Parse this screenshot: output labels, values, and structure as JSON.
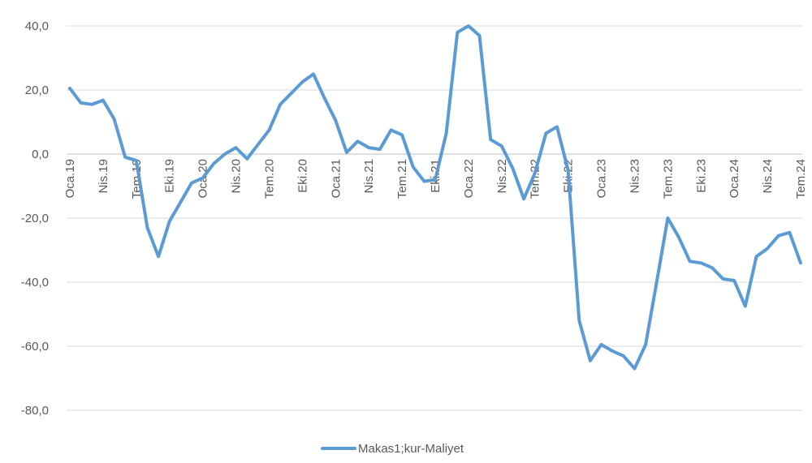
{
  "chart_data": {
    "type": "line",
    "title": "",
    "xlabel": "",
    "ylabel": "",
    "ylim": [
      -80,
      40
    ],
    "yticks": [
      "40,0",
      "20,0",
      "0,0",
      "-20,0",
      "-40,0",
      "-60,0",
      "-80,0"
    ],
    "ytick_values": [
      40,
      20,
      0,
      -20,
      -40,
      -60,
      -80
    ],
    "x": [
      "Oca.19",
      "Şub.19",
      "Mar.19",
      "Nis.19",
      "May.19",
      "Haz.19",
      "Tem.19",
      "Ağu.19",
      "Eyl.19",
      "Eki.19",
      "Kas.19",
      "Ara.19",
      "Oca.20",
      "Şub.20",
      "Mar.20",
      "Nis.20",
      "May.20",
      "Haz.20",
      "Tem.20",
      "Ağu.20",
      "Eyl.20",
      "Eki.20",
      "Kas.20",
      "Ara.20",
      "Oca.21",
      "Şub.21",
      "Mar.21",
      "Nis.21",
      "May.21",
      "Haz.21",
      "Tem.21",
      "Ağu.21",
      "Eyl.21",
      "Eki.21",
      "Kas.21",
      "Ara.21",
      "Oca.22",
      "Şub.22",
      "Mar.22",
      "Nis.22",
      "May.22",
      "Haz.22",
      "Tem.22",
      "Ağu.22",
      "Eyl.22",
      "Eki.22",
      "Kas.22",
      "Ara.22",
      "Oca.23",
      "Şub.23",
      "Mar.23",
      "Nis.23",
      "May.23",
      "Haz.23",
      "Tem.23",
      "Ağu.23",
      "Eyl.23",
      "Eki.23",
      "Kas.23",
      "Ara.23",
      "Oca.24",
      "Şub.24",
      "Mar.24",
      "Nis.24",
      "May.24",
      "Haz.24",
      "Tem.24"
    ],
    "xtick_labels": [
      "Oca.19",
      "Nis.19",
      "Tem.19",
      "Eki.19",
      "Oca.20",
      "Nis.20",
      "Tem.20",
      "Eki.20",
      "Oca.21",
      "Nis.21",
      "Tem.21",
      "Eki.21",
      "Oca.22",
      "Nis.22",
      "Tem.22",
      "Eki.22",
      "Oca.23",
      "Nis.23",
      "Tem.23",
      "Eki.23",
      "Oca.24",
      "Nis.24",
      "Tem.24"
    ],
    "series": [
      {
        "name": "Makas1;kur-Maliyet",
        "color": "#5b9bd5",
        "values": [
          20.5,
          16.0,
          15.5,
          16.8,
          11.0,
          -1.0,
          -2.0,
          -23.0,
          -32.0,
          -21.0,
          -15.0,
          -9.0,
          -7.5,
          -3.0,
          0.0,
          2.0,
          -1.5,
          3.0,
          7.5,
          15.5,
          19.0,
          22.5,
          25.0,
          17.5,
          10.5,
          0.5,
          4.0,
          2.0,
          1.5,
          7.5,
          6.0,
          -4.0,
          -8.5,
          -8.0,
          6.5,
          38.0,
          40.0,
          37.0,
          4.5,
          2.5,
          -4.5,
          -14.0,
          -6.0,
          6.5,
          8.5,
          -5.0,
          -52.0,
          -64.5,
          -59.5,
          -61.5,
          -63.0,
          -67.0,
          -59.5,
          -40.0,
          -20.0,
          -26.0,
          -33.5,
          -34.0,
          -35.5,
          -39.0,
          -39.5,
          -47.5,
          -32.0,
          -29.5,
          -25.5,
          -24.5,
          -34.0
        ]
      }
    ],
    "grid": true,
    "legend": "bottom"
  }
}
